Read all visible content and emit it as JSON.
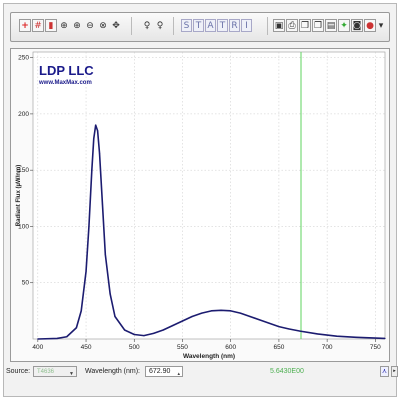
{
  "toolbar": {
    "buttons_left": [
      {
        "name": "add-marker-icon",
        "glyph": "+"
      },
      {
        "name": "grid-icon",
        "glyph": "#"
      },
      {
        "name": "trash-icon",
        "glyph": "▮"
      },
      {
        "name": "zoom-box-icon",
        "glyph": "⊕"
      },
      {
        "name": "zoom-in-icon",
        "glyph": "⊕"
      },
      {
        "name": "zoom-out-icon",
        "glyph": "⊖"
      },
      {
        "name": "zoom-fit-icon",
        "glyph": "⊗"
      },
      {
        "name": "pan-icon",
        "glyph": "✥"
      }
    ],
    "lamp_buttons": [
      {
        "name": "lamp-on-icon",
        "glyph": "♀"
      },
      {
        "name": "lamp-off-icon",
        "glyph": "♀"
      }
    ],
    "mode_letters": [
      "S",
      "T",
      "A",
      "T",
      "R",
      "I"
    ],
    "buttons_right": [
      {
        "name": "save-icon",
        "glyph": "▣"
      },
      {
        "name": "print-icon",
        "glyph": "⎙"
      },
      {
        "name": "copy-icon",
        "glyph": "❐"
      },
      {
        "name": "paste-icon",
        "glyph": "❐"
      },
      {
        "name": "export-icon",
        "glyph": "▤"
      },
      {
        "name": "marker-green-icon",
        "glyph": "✦"
      },
      {
        "name": "camera-icon",
        "glyph": "◙"
      },
      {
        "name": "stop-icon",
        "glyph": "●"
      }
    ],
    "menu_arrow": "▾"
  },
  "logo": {
    "name": "LDP LLC",
    "url": "www.MaxMax.com"
  },
  "chart_data": {
    "type": "line",
    "xlabel": "Wavelength (nm)",
    "ylabel": "Radiant Flux (µW/nm)",
    "xlim": [
      395,
      760
    ],
    "ylim": [
      0,
      255
    ],
    "xticks": [
      400,
      450,
      500,
      550,
      600,
      650,
      700,
      750
    ],
    "yticks": [
      50,
      100,
      150,
      200,
      250
    ],
    "cursor_x": 672.9,
    "series": [
      {
        "color": "#1c1c70",
        "x": [
          400,
          420,
          430,
          440,
          445,
          450,
          453,
          456,
          458,
          460,
          462,
          464,
          467,
          470,
          475,
          480,
          490,
          500,
          510,
          520,
          530,
          540,
          550,
          560,
          570,
          580,
          590,
          600,
          610,
          620,
          630,
          640,
          650,
          660,
          672,
          690,
          710,
          730,
          760
        ],
        "y": [
          0,
          0.5,
          2,
          10,
          25,
          60,
          100,
          150,
          178,
          190,
          185,
          165,
          120,
          75,
          40,
          20,
          8,
          4,
          3,
          5,
          8,
          12,
          16,
          20,
          23,
          25,
          25.5,
          25,
          23,
          20,
          17,
          14,
          11,
          9,
          7,
          4.5,
          2.5,
          1.5,
          0.5
        ]
      }
    ]
  },
  "status": {
    "source_label": "Source:",
    "source_value": "T4636",
    "wavelength_label": "Wavelength (nm):",
    "wavelength_value": "672.90",
    "reading": "5.6430E00"
  }
}
